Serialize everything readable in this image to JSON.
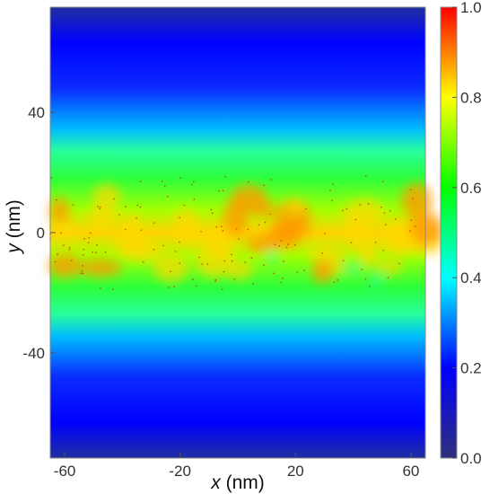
{
  "chart_data": {
    "type": "heatmap",
    "xlabel": {
      "var": "x",
      "unit": " (nm)"
    },
    "ylabel": {
      "var": "y",
      "unit": " (nm)"
    },
    "xlim": [
      -65,
      65
    ],
    "ylim": [
      -75,
      75
    ],
    "xticks": [
      -60,
      -20,
      20,
      60
    ],
    "yticks": [
      40,
      0,
      -40
    ],
    "colorbar": {
      "range": [
        0.0,
        1.0
      ],
      "ticks": [
        "1.0",
        "0.8",
        "0.6",
        "0.4",
        "0.2",
        "0.0"
      ],
      "colormap": [
        "#30307a",
        "#0000ff",
        "#00ffff",
        "#00ff00",
        "#ffff00",
        "#ff0000"
      ]
    },
    "band": {
      "center_y": 0,
      "high_values_range_y": [
        -20,
        20
      ],
      "peak_value": 0.9,
      "edge_value_y_plus_minus_40": 0.3,
      "background_value": 0.1
    }
  }
}
